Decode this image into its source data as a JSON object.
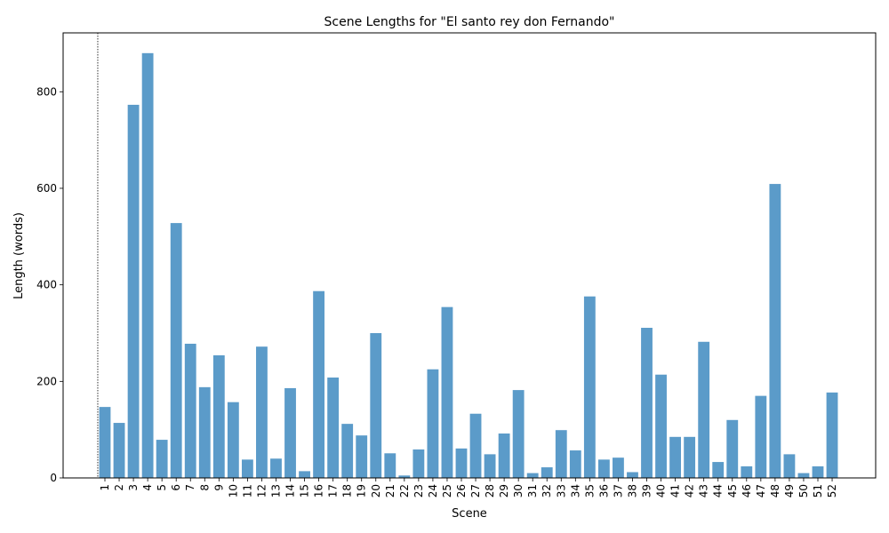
{
  "chart_data": {
    "type": "bar",
    "title": "Scene Lengths for \"El santo rey don Fernando\"",
    "xlabel": "Scene",
    "ylabel": "Length (words)",
    "categories": [
      "1",
      "2",
      "3",
      "4",
      "5",
      "6",
      "7",
      "8",
      "9",
      "10",
      "11",
      "12",
      "13",
      "14",
      "15",
      "16",
      "17",
      "18",
      "19",
      "20",
      "21",
      "22",
      "23",
      "24",
      "25",
      "26",
      "27",
      "28",
      "29",
      "30",
      "31",
      "32",
      "33",
      "34",
      "35",
      "36",
      "37",
      "38",
      "39",
      "40",
      "41",
      "42",
      "43",
      "44",
      "45",
      "46",
      "47",
      "48",
      "49",
      "50",
      "51",
      "52"
    ],
    "values": [
      147,
      114,
      773,
      880,
      79,
      528,
      278,
      188,
      254,
      157,
      38,
      272,
      40,
      186,
      14,
      387,
      208,
      112,
      88,
      300,
      51,
      5,
      59,
      225,
      354,
      61,
      133,
      49,
      92,
      182,
      10,
      22,
      99,
      57,
      376,
      38,
      42,
      12,
      311,
      214,
      85,
      85,
      282,
      33,
      120,
      24,
      170,
      609,
      49,
      10,
      24,
      177
    ],
    "ylim": [
      0,
      922
    ],
    "yticks": [
      0,
      200,
      400,
      600,
      800
    ],
    "bar_color": "#5b9bc9",
    "reference_line": {
      "x": "1",
      "style": "dotted",
      "color": "#000000"
    },
    "grid": false,
    "legend": "none"
  }
}
